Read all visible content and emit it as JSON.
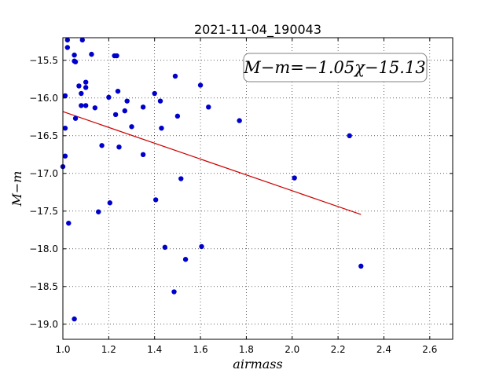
{
  "chart_data": {
    "type": "scatter",
    "title": "2021-11-04_190043",
    "xlabel": "airmass",
    "ylabel": "M−m",
    "xlim": [
      1.0,
      2.7
    ],
    "ylim": [
      -19.2,
      -15.2
    ],
    "y_inverted": true,
    "grid": true,
    "x_ticks": [
      1.0,
      1.2,
      1.4,
      1.6,
      1.8,
      2.0,
      2.2,
      2.4,
      2.6
    ],
    "x_tick_labels": [
      "1.0",
      "1.2",
      "1.4",
      "1.6",
      "1.8",
      "2.0",
      "2.2",
      "2.4",
      "2.6"
    ],
    "y_ticks": [
      -15.5,
      -16.0,
      -16.5,
      -17.0,
      -17.5,
      -18.0,
      -18.5,
      -19.0
    ],
    "y_tick_labels": [
      "−15.5",
      "−16.0",
      "−16.5",
      "−17.0",
      "−17.5",
      "−18.0",
      "−18.5",
      "−19.0"
    ],
    "annotation": "M−m=−1.05χ−15.13",
    "points": {
      "color": "#0000cc",
      "x": [
        1.0,
        1.01,
        1.01,
        1.01,
        1.02,
        1.02,
        1.025,
        1.05,
        1.05,
        1.055,
        1.05,
        1.055,
        1.07,
        1.08,
        1.08,
        1.085,
        1.1,
        1.1,
        1.1,
        1.125,
        1.14,
        1.155,
        1.17,
        1.2,
        1.205,
        1.225,
        1.23,
        1.24,
        1.235,
        1.245,
        1.27,
        1.28,
        1.3,
        1.35,
        1.35,
        1.4,
        1.405,
        1.425,
        1.43,
        1.445,
        1.485,
        1.49,
        1.5,
        1.515,
        1.535,
        1.6,
        1.605,
        1.635,
        1.77,
        2.01,
        2.25,
        2.3
      ],
      "y": [
        -16.91,
        -16.4,
        -15.97,
        -16.77,
        -15.33,
        -15.23,
        -17.66,
        -15.43,
        -15.51,
        -16.27,
        -18.93,
        -15.52,
        -15.84,
        -15.94,
        -16.1,
        -15.23,
        -16.1,
        -15.79,
        -15.86,
        -15.42,
        -16.13,
        -17.51,
        -16.63,
        -15.99,
        -17.39,
        -15.44,
        -16.22,
        -15.91,
        -15.44,
        -16.65,
        -16.17,
        -16.04,
        -16.38,
        -16.12,
        -16.75,
        -15.94,
        -17.35,
        -16.04,
        -16.4,
        -17.98,
        -18.57,
        -15.71,
        -16.24,
        -17.07,
        -18.14,
        -15.83,
        -17.97,
        -16.12,
        -16.3,
        -17.06,
        -16.5,
        -18.23
      ]
    },
    "fit_line": {
      "color": "#cc0000",
      "x": [
        1.0,
        2.3
      ],
      "y": [
        -16.18,
        -17.545
      ]
    }
  }
}
